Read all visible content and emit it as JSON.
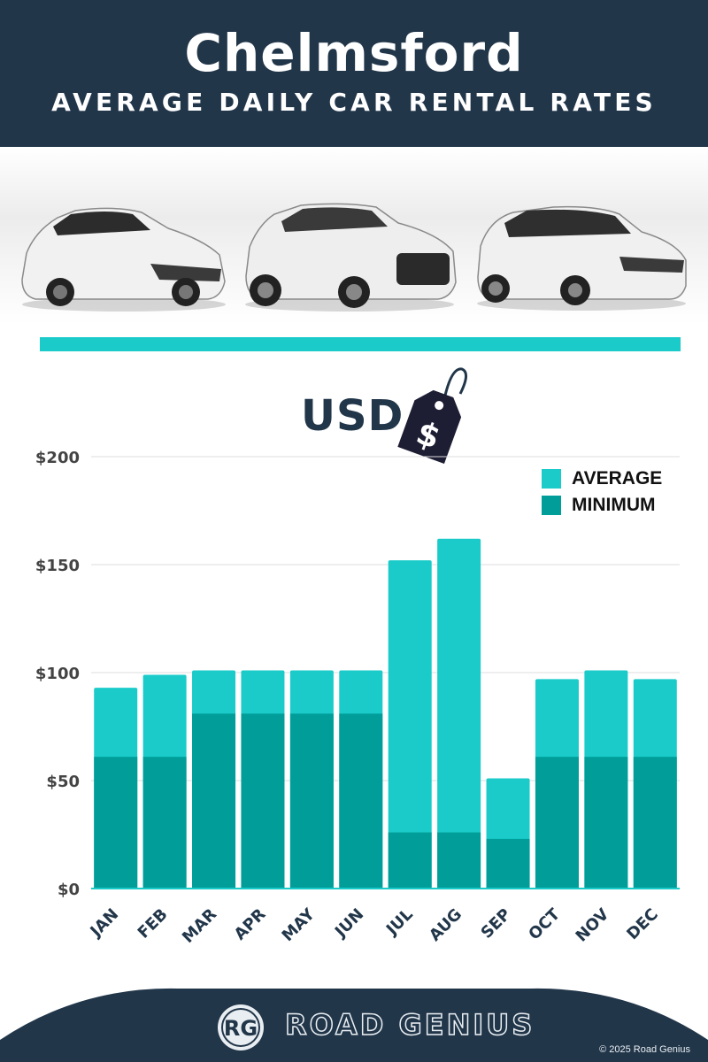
{
  "header": {
    "title": "Chelmsford",
    "subtitle": "AVERAGE DAILY CAR RENTAL RATES"
  },
  "currency_label": "USD",
  "tag_symbol": "$",
  "legend": {
    "average_label": "AVERAGE",
    "minimum_label": "MINIMUM"
  },
  "colors": {
    "average": "#1acbc9",
    "minimum": "#019e99",
    "dark": "#22364a",
    "grid": "#dcdcdc"
  },
  "chart_data": {
    "type": "bar",
    "stacked": "overlay",
    "categories": [
      "JAN",
      "FEB",
      "MAR",
      "APR",
      "MAY",
      "JUN",
      "JUL",
      "AUG",
      "SEP",
      "OCT",
      "NOV",
      "DEC"
    ],
    "series": [
      {
        "name": "AVERAGE",
        "values": [
          93,
          99,
          101,
          101,
          101,
          101,
          152,
          162,
          51,
          97,
          101,
          97
        ]
      },
      {
        "name": "MINIMUM",
        "values": [
          61,
          61,
          81,
          81,
          81,
          81,
          26,
          26,
          23,
          61,
          61,
          61
        ]
      }
    ],
    "yticks": [
      "$0",
      "$50",
      "$100",
      "$150",
      "$200"
    ],
    "ylim": [
      0,
      200
    ],
    "grid": true,
    "legend_position": "top-right"
  },
  "footer": {
    "logo_letters": "RG",
    "brand": "ROAD GENIUS",
    "copyright": "© 2025 Road Genius"
  }
}
